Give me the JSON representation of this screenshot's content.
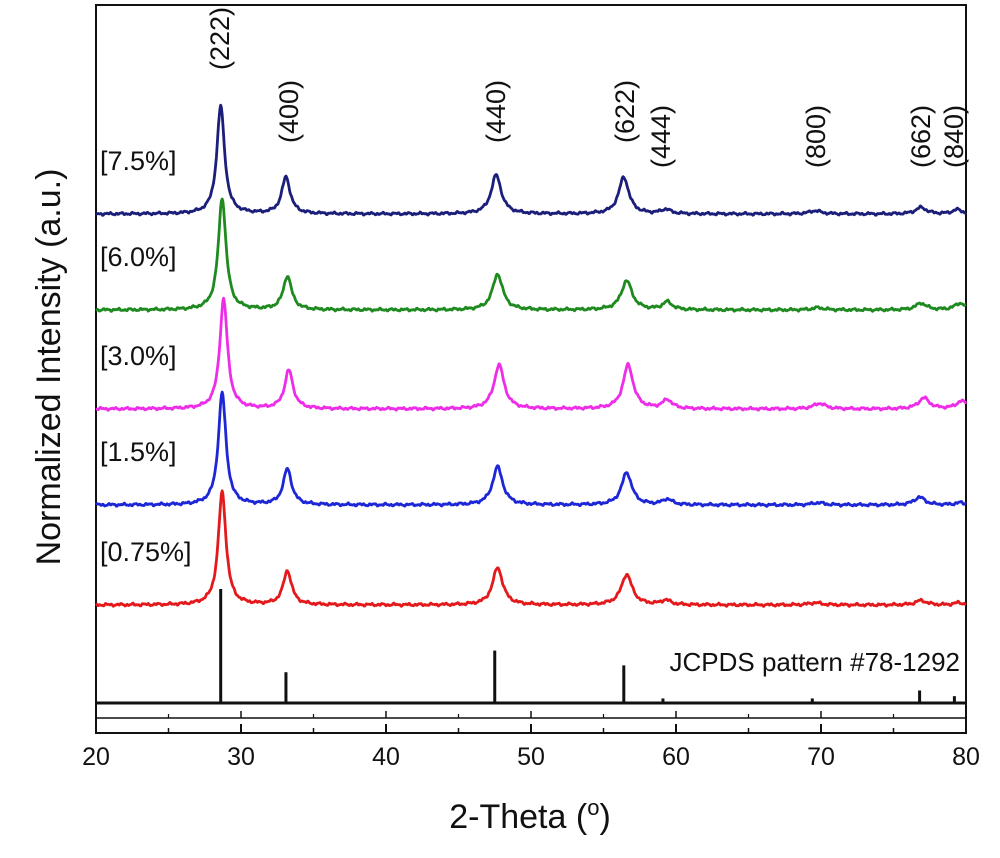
{
  "chart_data": {
    "type": "line",
    "xlabel": "2-Theta (",
    "xlabel_super": "o",
    "xlabel_close": ")",
    "ylabel": "Normalized Intensity (a.u.)",
    "xlim": [
      20,
      80
    ],
    "x_ticks": [
      20,
      30,
      40,
      50,
      60,
      70,
      80
    ],
    "x_minor_step": 5,
    "grid": false,
    "series": [
      {
        "name": "[7.5%]",
        "color": "#1b1f7a",
        "peaks": [
          [
            28.6,
            1.0,
            0.32
          ],
          [
            33.1,
            0.34,
            0.35
          ],
          [
            47.6,
            0.36,
            0.42
          ],
          [
            56.4,
            0.34,
            0.42
          ],
          [
            59.3,
            0.04,
            0.4
          ],
          [
            69.6,
            0.03,
            0.5
          ],
          [
            76.9,
            0.06,
            0.45
          ],
          [
            79.4,
            0.04,
            0.4
          ]
        ]
      },
      {
        "name": "[6.0%]",
        "color": "#1f8a1f",
        "peaks": [
          [
            28.7,
            1.0,
            0.32
          ],
          [
            33.2,
            0.3,
            0.35
          ],
          [
            47.7,
            0.32,
            0.42
          ],
          [
            56.6,
            0.26,
            0.45
          ],
          [
            59.4,
            0.07,
            0.4
          ],
          [
            69.8,
            0.02,
            0.5
          ],
          [
            76.9,
            0.06,
            0.45
          ],
          [
            79.6,
            0.06,
            0.45
          ]
        ]
      },
      {
        "name": "[3.0%]",
        "color": "#ee2de8",
        "peaks": [
          [
            28.8,
            1.0,
            0.32
          ],
          [
            33.3,
            0.35,
            0.35
          ],
          [
            47.8,
            0.4,
            0.42
          ],
          [
            56.7,
            0.4,
            0.42
          ],
          [
            59.4,
            0.08,
            0.4
          ],
          [
            69.9,
            0.05,
            0.5
          ],
          [
            77.1,
            0.1,
            0.45
          ],
          [
            79.7,
            0.07,
            0.45
          ]
        ]
      },
      {
        "name": "[1.5%]",
        "color": "#1d27d6",
        "peaks": [
          [
            28.7,
            1.0,
            0.32
          ],
          [
            33.2,
            0.32,
            0.35
          ],
          [
            47.7,
            0.34,
            0.42
          ],
          [
            56.6,
            0.29,
            0.42
          ],
          [
            59.4,
            0.05,
            0.4
          ],
          [
            69.8,
            0.02,
            0.5
          ],
          [
            76.8,
            0.07,
            0.45
          ],
          [
            79.6,
            0.02,
            0.4
          ]
        ]
      },
      {
        "name": "[0.75%]",
        "color": "#e3191c",
        "peaks": [
          [
            28.7,
            1.0,
            0.32
          ],
          [
            33.2,
            0.3,
            0.35
          ],
          [
            47.7,
            0.33,
            0.42
          ],
          [
            56.6,
            0.27,
            0.45
          ],
          [
            59.3,
            0.04,
            0.4
          ],
          [
            69.6,
            0.02,
            0.5
          ],
          [
            76.9,
            0.04,
            0.45
          ],
          [
            79.5,
            0.02,
            0.4
          ]
        ]
      }
    ],
    "reference": {
      "label": "JCPDS pattern #78-1292",
      "lines": [
        {
          "x": 28.6,
          "intensity": 100
        },
        {
          "x": 33.1,
          "intensity": 27
        },
        {
          "x": 47.5,
          "intensity": 46
        },
        {
          "x": 56.4,
          "intensity": 33
        },
        {
          "x": 59.1,
          "intensity": 4
        },
        {
          "x": 69.4,
          "intensity": 4
        },
        {
          "x": 76.8,
          "intensity": 11
        },
        {
          "x": 79.2,
          "intensity": 6
        }
      ]
    },
    "peak_labels": [
      {
        "hkl": "(222)",
        "x": 28.6
      },
      {
        "hkl": "(400)",
        "x": 33.4
      },
      {
        "hkl": "(440)",
        "x": 47.8
      },
      {
        "hkl": "(622)",
        "x": 56.5
      },
      {
        "hkl": "(444)",
        "x": 59.8
      },
      {
        "hkl": "(800)",
        "x": 69.8
      },
      {
        "hkl": "(662)",
        "x": 76.7
      },
      {
        "hkl": "(840)",
        "x": 79.2
      }
    ]
  }
}
